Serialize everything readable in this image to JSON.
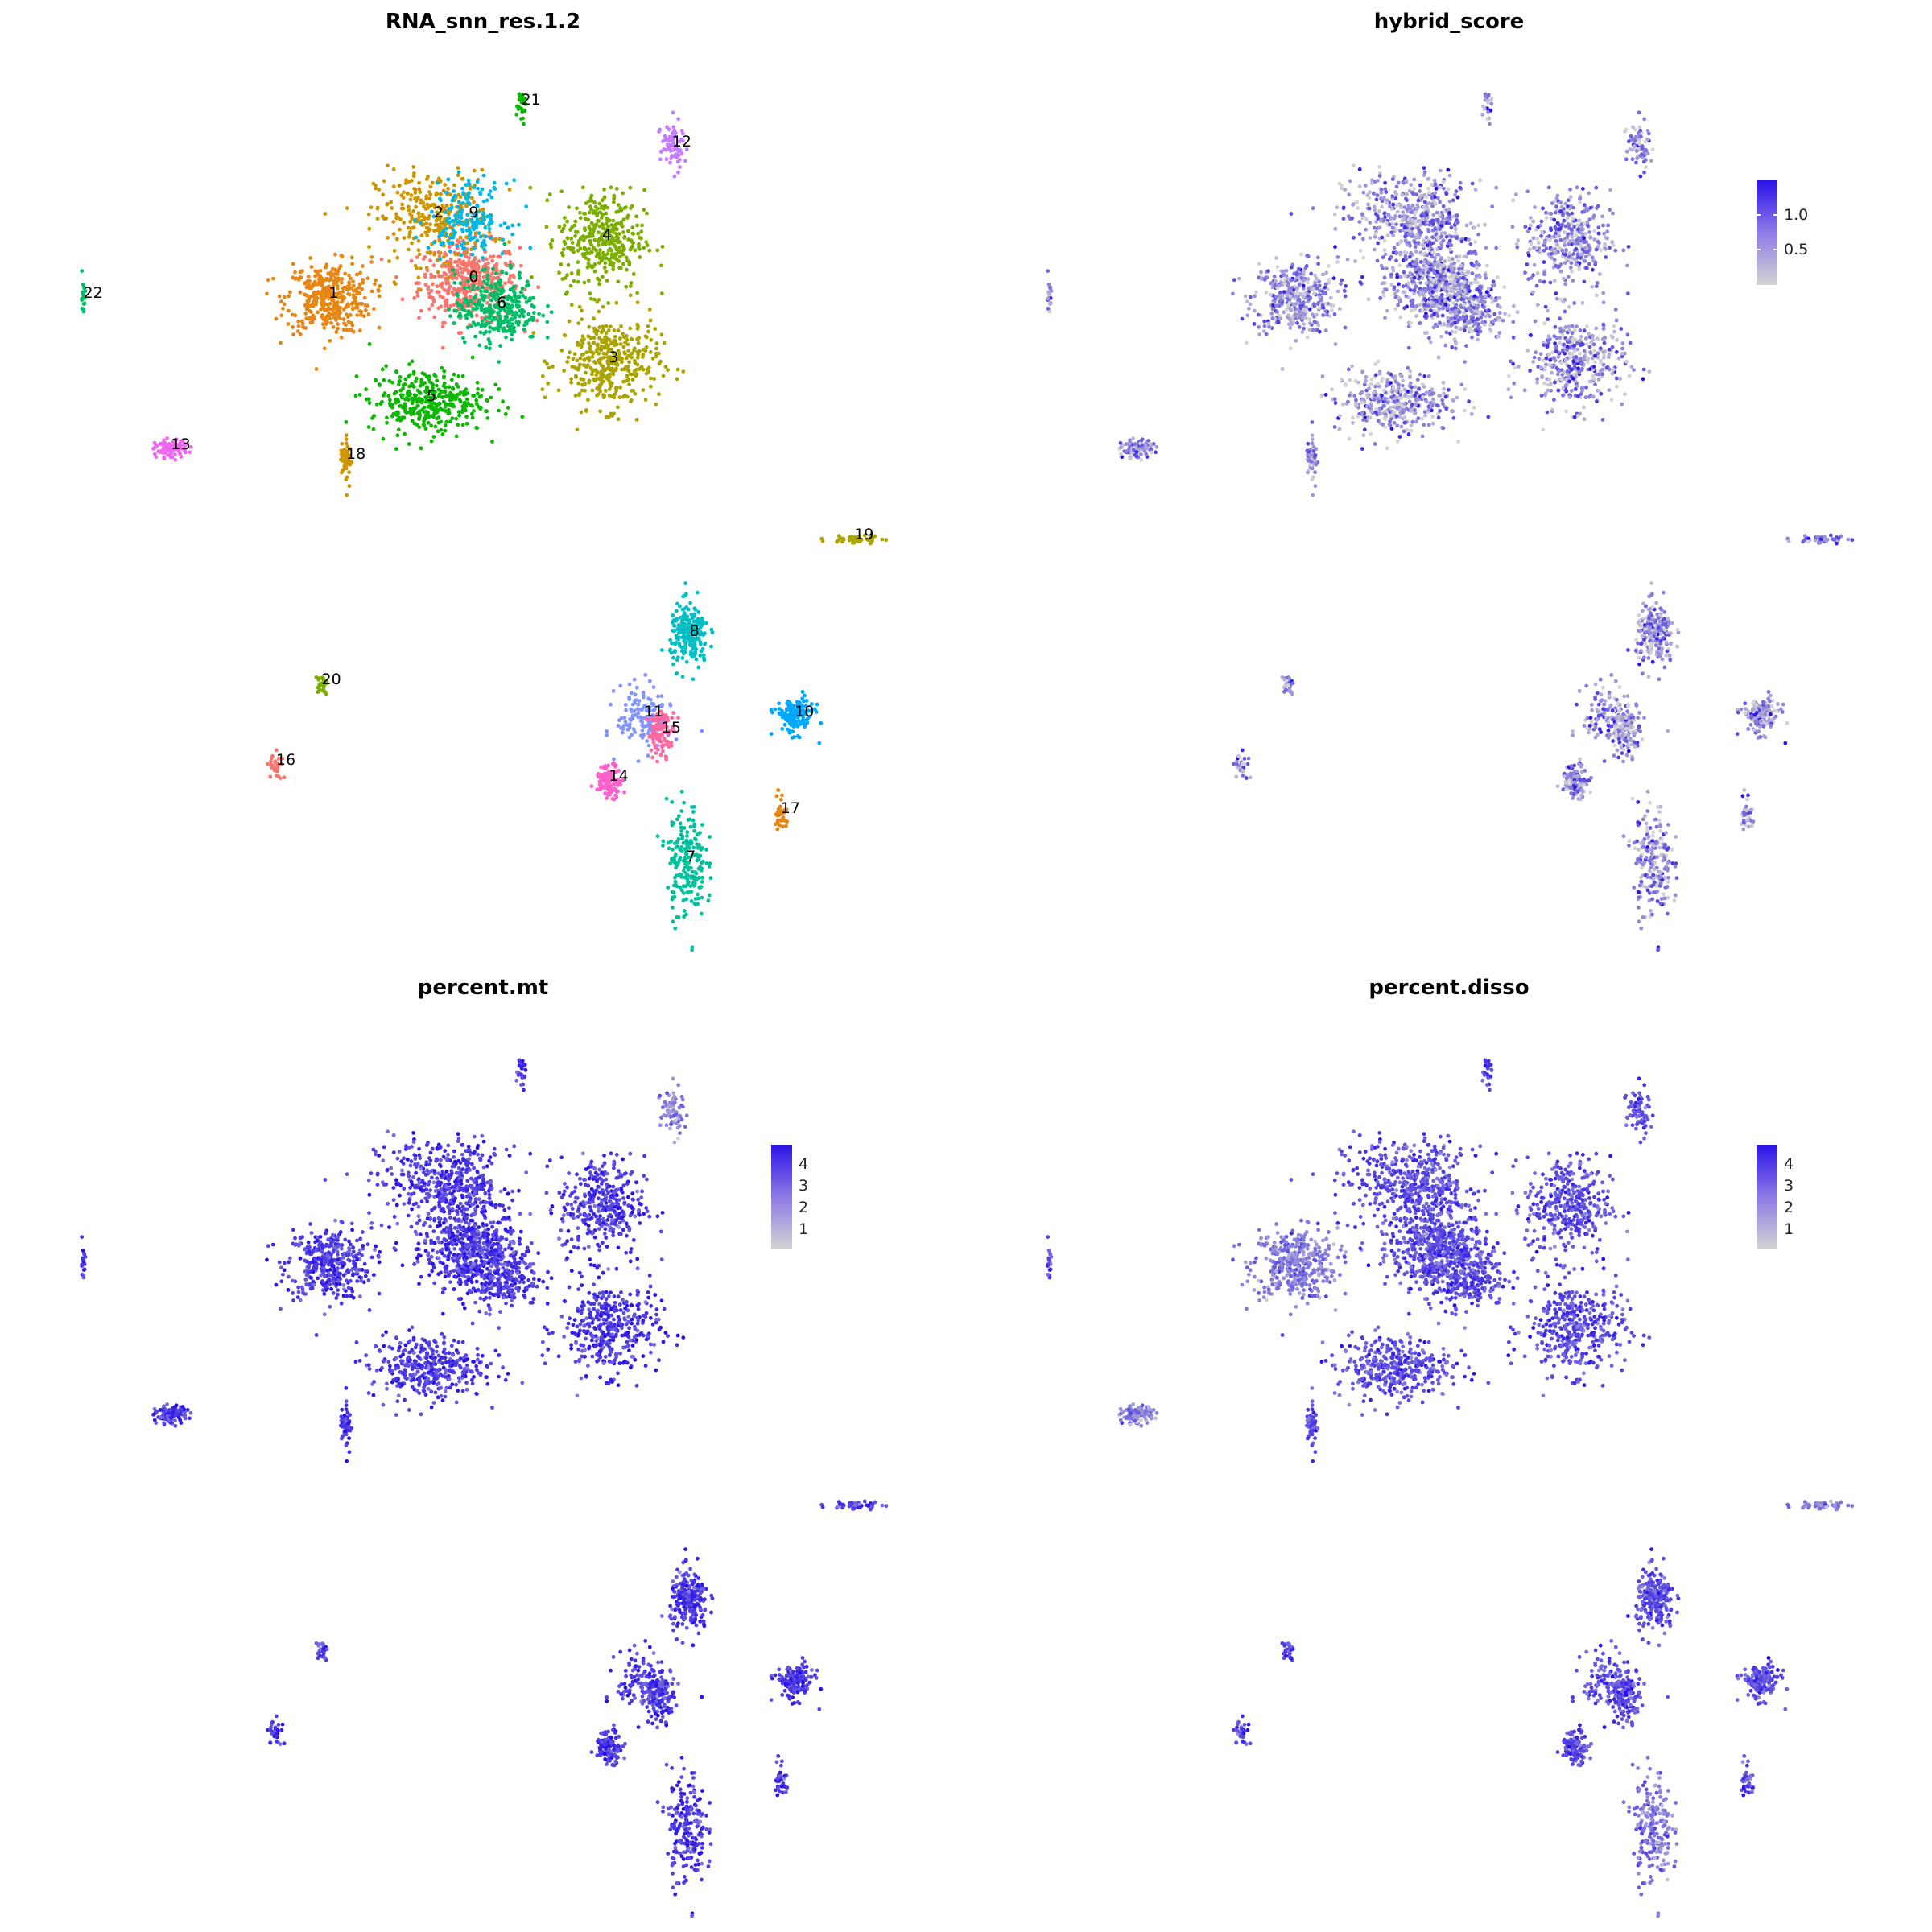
{
  "chart_data": [
    {
      "type": "scatter",
      "title": "RNA_snn_res.1.2",
      "color_by": "cluster",
      "legend": "none",
      "grid": false,
      "clusters": [
        {
          "name": "0",
          "x": -1.0,
          "y": 7.0
        },
        {
          "name": "1",
          "x": -5.0,
          "y": 6.5
        },
        {
          "name": "2",
          "x": -2.0,
          "y": 9.0
        },
        {
          "name": "3",
          "x": 3.0,
          "y": 4.5
        },
        {
          "name": "4",
          "x": 2.8,
          "y": 8.3
        },
        {
          "name": "5",
          "x": -2.2,
          "y": 3.3
        },
        {
          "name": "6",
          "x": -0.2,
          "y": 6.2
        },
        {
          "name": "7",
          "x": 5.2,
          "y": -11.0
        },
        {
          "name": "8",
          "x": 5.3,
          "y": -4.0
        },
        {
          "name": "9",
          "x": -1.0,
          "y": 9.0
        },
        {
          "name": "10",
          "x": 8.3,
          "y": -6.5
        },
        {
          "name": "11",
          "x": 4.0,
          "y": -6.5
        },
        {
          "name": "12",
          "x": 4.8,
          "y": 11.2
        },
        {
          "name": "13",
          "x": -9.5,
          "y": 1.8
        },
        {
          "name": "14",
          "x": 3.0,
          "y": -8.5
        },
        {
          "name": "15",
          "x": 4.5,
          "y": -7.0
        },
        {
          "name": "16",
          "x": -6.5,
          "y": -8.0
        },
        {
          "name": "17",
          "x": 7.9,
          "y": -9.5
        },
        {
          "name": "18",
          "x": -4.5,
          "y": 1.5
        },
        {
          "name": "19",
          "x": 10.0,
          "y": -1.0
        },
        {
          "name": "20",
          "x": -5.2,
          "y": -5.5
        },
        {
          "name": "21",
          "x": 0.5,
          "y": 12.5
        },
        {
          "name": "22",
          "x": -12.0,
          "y": 6.5
        }
      ],
      "colors": [
        "#F8766D",
        "#E68613",
        "#CD9600",
        "#ABA300",
        "#7CAE00",
        "#0CB702",
        "#00BE67",
        "#00C19A",
        "#00BFC4",
        "#00B8E7",
        "#00A9FF",
        "#8494FF",
        "#C77CFF",
        "#ED68ED",
        "#FF61CC",
        "#FF68A1",
        "#F8766D",
        "#E68613",
        "#CD9600",
        "#ABA300",
        "#7CAE00",
        "#0CB702",
        "#00BE67"
      ]
    },
    {
      "type": "scatter",
      "title": "hybrid_score",
      "color_scale": {
        "low": "#d3d3d3",
        "high": "#2a13e6"
      },
      "colorbar_ticks": [
        "1.0",
        "0.5"
      ],
      "legend": "right",
      "grid": false
    },
    {
      "type": "scatter",
      "title": "percent.mt",
      "color_scale": {
        "low": "#d3d3d3",
        "high": "#2a13e6"
      },
      "colorbar_ticks": [
        "4",
        "3",
        "2",
        "1"
      ],
      "legend": "right",
      "grid": false
    },
    {
      "type": "scatter",
      "title": "percent.disso",
      "color_scale": {
        "low": "#d3d3d3",
        "high": "#2a13e6"
      },
      "colorbar_ticks": [
        "4",
        "3",
        "2",
        "1"
      ],
      "legend": "right",
      "grid": false
    }
  ]
}
